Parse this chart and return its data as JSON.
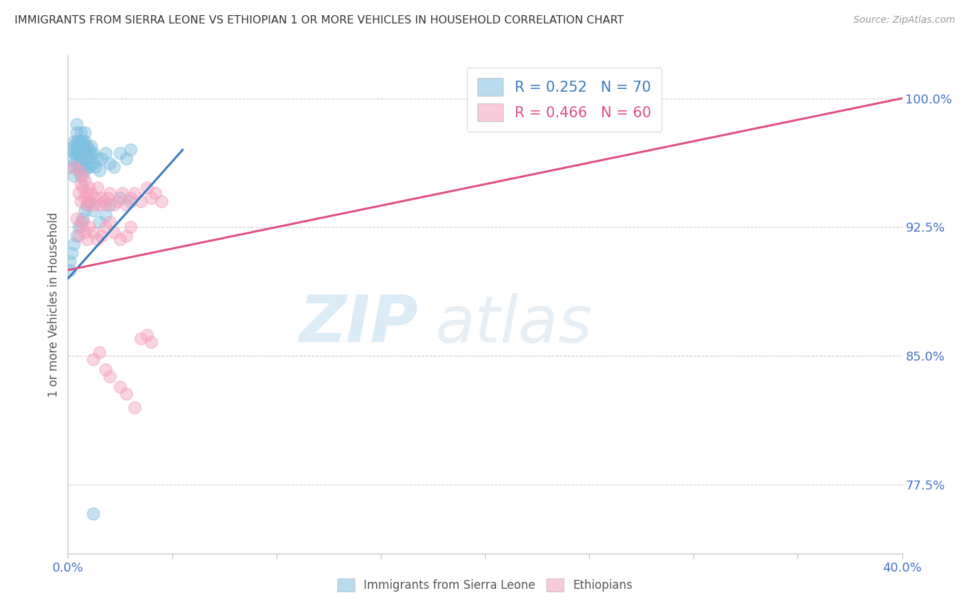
{
  "title": "IMMIGRANTS FROM SIERRA LEONE VS ETHIOPIAN 1 OR MORE VEHICLES IN HOUSEHOLD CORRELATION CHART",
  "source": "Source: ZipAtlas.com",
  "ylabel": "1 or more Vehicles in Household",
  "sl_color": "#7fbfdf",
  "eth_color": "#f4a0bc",
  "sl_line_color": "#3a7abf",
  "eth_line_color": "#e05080",
  "legend_sl_r": "R = 0.252",
  "legend_sl_n": "N = 70",
  "legend_eth_r": "R = 0.466",
  "legend_eth_n": "N = 60",
  "background_color": "#ffffff",
  "grid_color": "#cccccc",
  "xmin": 0.0,
  "xmax": 0.4,
  "ymin": 0.735,
  "ymax": 1.025,
  "yticks": [
    0.775,
    0.85,
    0.925,
    1.0
  ],
  "ytick_labels": [
    "77.5%",
    "85.0%",
    "92.5%",
    "100.0%"
  ],
  "xticks": [
    0.0,
    0.05,
    0.1,
    0.15,
    0.2,
    0.25,
    0.3,
    0.35,
    0.4
  ],
  "sl_line_x": [
    0.0,
    0.055
  ],
  "sl_line_y": [
    0.895,
    0.97
  ],
  "eth_line_x": [
    0.0,
    0.4
  ],
  "eth_line_y": [
    0.9,
    1.0
  ],
  "sl_x": [
    0.001,
    0.002,
    0.002,
    0.003,
    0.003,
    0.003,
    0.003,
    0.004,
    0.004,
    0.004,
    0.004,
    0.004,
    0.004,
    0.005,
    0.005,
    0.005,
    0.005,
    0.005,
    0.006,
    0.006,
    0.006,
    0.006,
    0.006,
    0.006,
    0.007,
    0.007,
    0.007,
    0.007,
    0.008,
    0.008,
    0.008,
    0.008,
    0.009,
    0.009,
    0.009,
    0.01,
    0.01,
    0.01,
    0.011,
    0.011,
    0.012,
    0.012,
    0.013,
    0.014,
    0.015,
    0.016,
    0.018,
    0.02,
    0.022,
    0.025,
    0.028,
    0.03,
    0.001,
    0.001,
    0.002,
    0.003,
    0.004,
    0.005,
    0.006,
    0.007,
    0.008,
    0.009,
    0.01,
    0.012,
    0.015,
    0.018,
    0.02,
    0.025,
    0.03,
    0.012
  ],
  "sl_y": [
    0.96,
    0.97,
    0.965,
    0.975,
    0.968,
    0.955,
    0.972,
    0.98,
    0.975,
    0.97,
    0.965,
    0.96,
    0.985,
    0.975,
    0.968,
    0.962,
    0.958,
    0.972,
    0.97,
    0.965,
    0.96,
    0.955,
    0.975,
    0.98,
    0.968,
    0.975,
    0.96,
    0.972,
    0.965,
    0.958,
    0.975,
    0.98,
    0.96,
    0.968,
    0.972,
    0.965,
    0.97,
    0.96,
    0.968,
    0.972,
    0.962,
    0.968,
    0.96,
    0.965,
    0.958,
    0.965,
    0.968,
    0.962,
    0.96,
    0.968,
    0.965,
    0.97,
    0.9,
    0.905,
    0.91,
    0.915,
    0.92,
    0.925,
    0.928,
    0.93,
    0.935,
    0.938,
    0.94,
    0.935,
    0.928,
    0.932,
    0.938,
    0.942,
    0.94,
    0.758
  ],
  "eth_x": [
    0.003,
    0.004,
    0.005,
    0.005,
    0.006,
    0.006,
    0.007,
    0.007,
    0.008,
    0.008,
    0.009,
    0.009,
    0.01,
    0.01,
    0.011,
    0.012,
    0.013,
    0.014,
    0.015,
    0.016,
    0.017,
    0.018,
    0.019,
    0.02,
    0.022,
    0.024,
    0.026,
    0.028,
    0.03,
    0.032,
    0.035,
    0.038,
    0.04,
    0.042,
    0.045,
    0.005,
    0.006,
    0.007,
    0.008,
    0.009,
    0.01,
    0.012,
    0.014,
    0.016,
    0.018,
    0.02,
    0.022,
    0.025,
    0.028,
    0.03,
    0.035,
    0.038,
    0.04,
    0.012,
    0.015,
    0.018,
    0.02,
    0.025,
    0.028,
    0.032
  ],
  "eth_y": [
    0.96,
    0.93,
    0.945,
    0.958,
    0.95,
    0.94,
    0.955,
    0.948,
    0.952,
    0.942,
    0.945,
    0.938,
    0.948,
    0.94,
    0.945,
    0.938,
    0.942,
    0.948,
    0.938,
    0.942,
    0.94,
    0.938,
    0.942,
    0.945,
    0.938,
    0.94,
    0.945,
    0.938,
    0.942,
    0.945,
    0.94,
    0.948,
    0.942,
    0.945,
    0.94,
    0.92,
    0.925,
    0.928,
    0.922,
    0.918,
    0.925,
    0.922,
    0.918,
    0.92,
    0.925,
    0.928,
    0.922,
    0.918,
    0.92,
    0.925,
    0.86,
    0.862,
    0.858,
    0.848,
    0.852,
    0.842,
    0.838,
    0.832,
    0.828,
    0.82
  ]
}
